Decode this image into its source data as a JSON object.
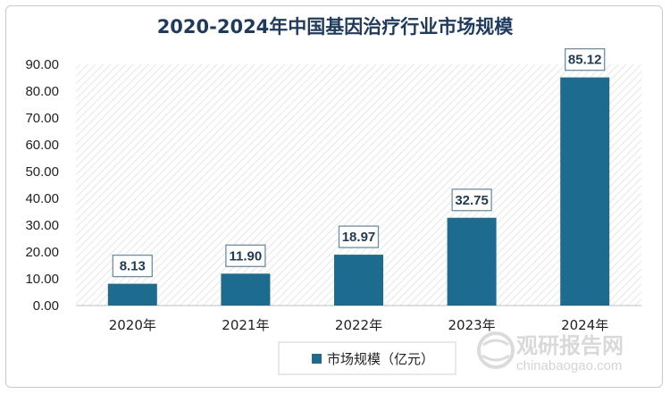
{
  "chart_data": {
    "type": "bar",
    "title": "2020-2024年中国基因治疗行业市场规模",
    "categories": [
      "2020年",
      "2021年",
      "2022年",
      "2023年",
      "2024年"
    ],
    "series": [
      {
        "name": "市场规模（亿元）",
        "values": [
          8.13,
          11.9,
          18.97,
          32.75,
          85.12
        ],
        "color": "#1d6c8f"
      }
    ],
    "data_labels": [
      "8.13",
      "11.90",
      "18.97",
      "32.75",
      "85.12"
    ],
    "ylim": [
      0,
      90
    ],
    "yticks": [
      "0.00",
      "10.00",
      "20.00",
      "30.00",
      "40.00",
      "50.00",
      "60.00",
      "70.00",
      "80.00",
      "90.00"
    ],
    "xlabel": "",
    "ylabel": "",
    "legend_position": "bottom",
    "grid": false,
    "plot_background": "diagonal-hatch"
  },
  "watermark": {
    "name": "观研报告网",
    "url": "chinabaogao.com",
    "icon": "globe-logo-icon"
  }
}
